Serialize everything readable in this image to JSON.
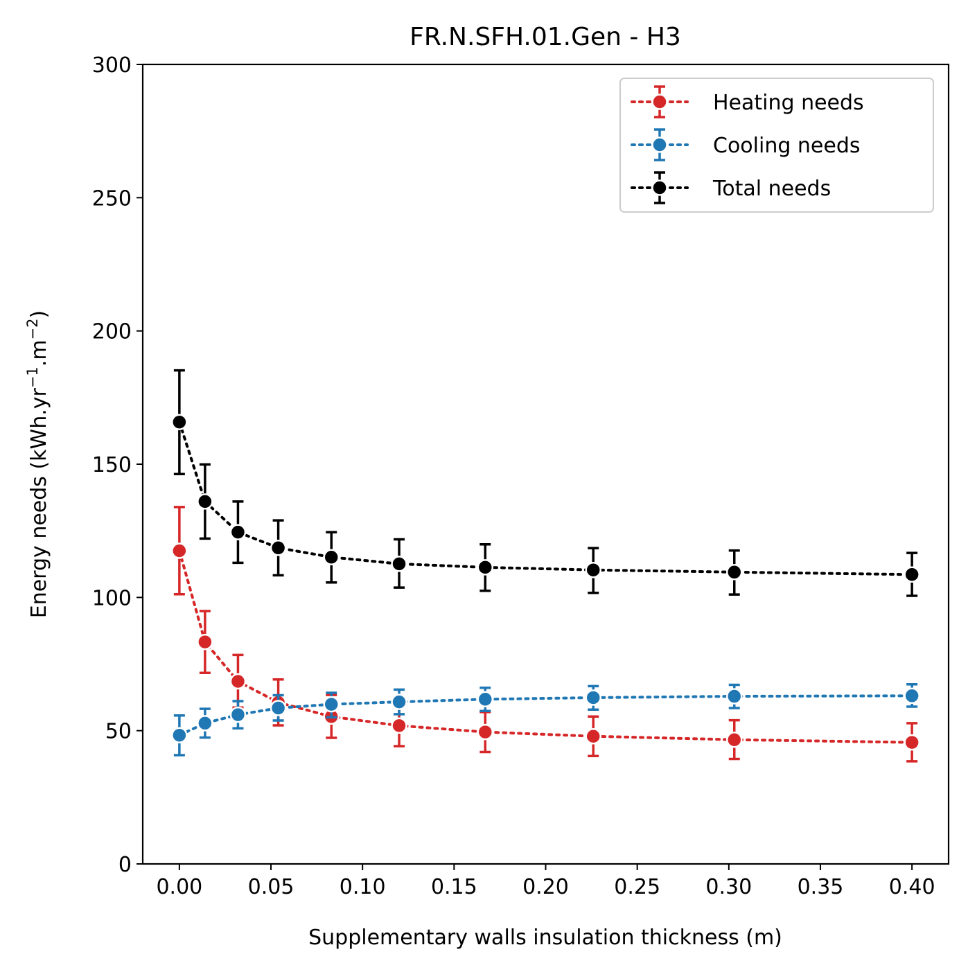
{
  "chart_data": {
    "type": "line",
    "title": "FR.N.SFH.01.Gen - H3",
    "xlabel": "Supplementary walls insulation thickness (m)",
    "ylabel": {
      "prefix": "Energy needs (kWh.yr",
      "sup1": "−1",
      "middle": ".m",
      "sup2": "−2",
      "suffix": ")"
    },
    "xlim": [
      -0.02,
      0.42
    ],
    "ylim": [
      0,
      300
    ],
    "xticks": [
      "0.00",
      "0.05",
      "0.10",
      "0.15",
      "0.20",
      "0.25",
      "0.30",
      "0.35",
      "0.40"
    ],
    "yticks": [
      "0",
      "50",
      "100",
      "150",
      "200",
      "250",
      "300"
    ],
    "grid": false,
    "legend_position": "top-right",
    "x": [
      0.0,
      0.014,
      0.032,
      0.054,
      0.083,
      0.12,
      0.167,
      0.226,
      0.303,
      0.4
    ],
    "series": [
      {
        "name": "Heating needs",
        "color": "#d62728",
        "values": [
          117.5,
          83.3,
          68.5,
          60.6,
          55.3,
          51.9,
          49.5,
          47.9,
          46.6,
          45.6
        ],
        "err_low": [
          101.2,
          71.7,
          58.7,
          52.0,
          47.3,
          44.2,
          42.0,
          40.5,
          39.4,
          38.5
        ],
        "err_high": [
          133.9,
          94.9,
          78.4,
          69.2,
          63.4,
          59.5,
          57.0,
          55.3,
          53.9,
          52.8
        ]
      },
      {
        "name": "Cooling needs",
        "color": "#1f77b4",
        "values": [
          48.3,
          52.8,
          56.0,
          58.5,
          59.9,
          60.8,
          61.8,
          62.4,
          62.9,
          63.1
        ],
        "err_low": [
          40.8,
          47.4,
          50.9,
          53.8,
          55.0,
          56.2,
          57.4,
          57.9,
          58.5,
          59.0
        ],
        "err_high": [
          55.7,
          58.2,
          61.1,
          63.3,
          64.2,
          65.4,
          66.1,
          66.7,
          67.2,
          67.4
        ]
      },
      {
        "name": "Total needs",
        "color": "#000000",
        "values": [
          165.8,
          136.0,
          124.5,
          118.6,
          115.1,
          112.6,
          111.3,
          110.3,
          109.5,
          108.6
        ],
        "err_low": [
          146.3,
          122.1,
          113.0,
          108.3,
          105.6,
          103.7,
          102.5,
          101.7,
          101.1,
          100.6
        ],
        "err_high": [
          185.2,
          149.9,
          136.0,
          128.9,
          124.5,
          121.8,
          119.9,
          118.5,
          117.6,
          116.7
        ]
      }
    ]
  }
}
